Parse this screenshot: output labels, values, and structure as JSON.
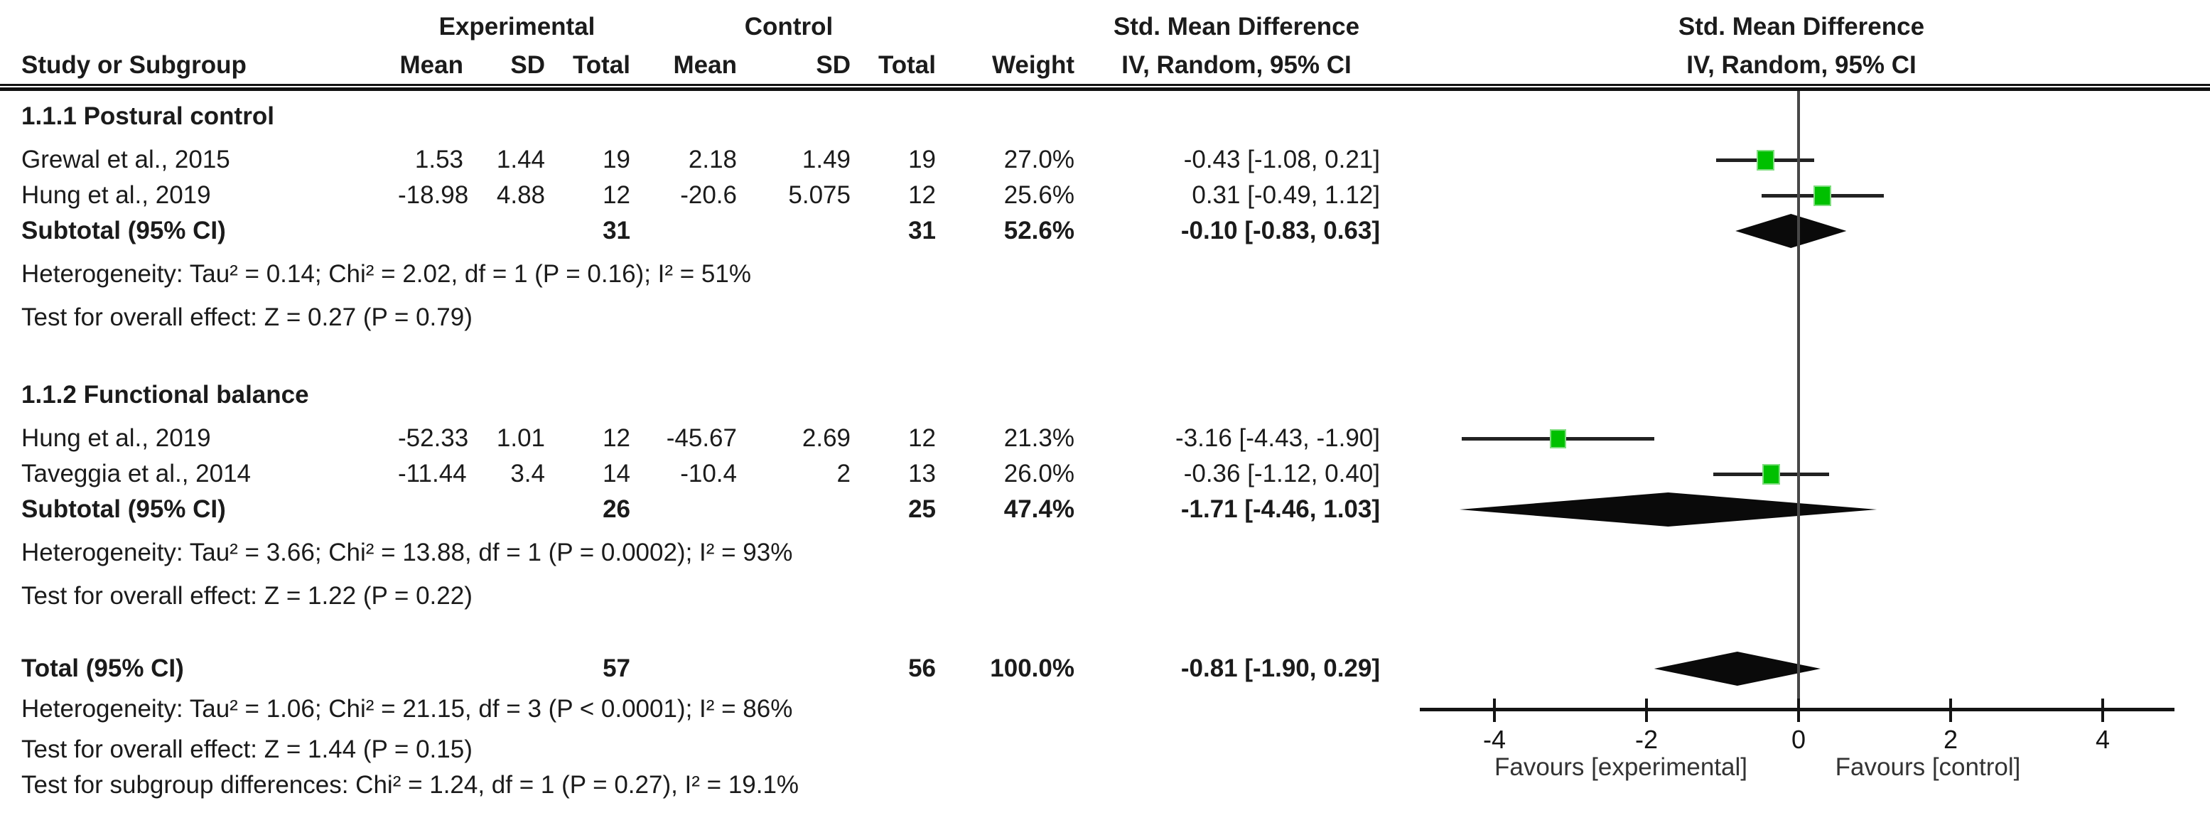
{
  "headers": {
    "experimental": "Experimental",
    "control": "Control",
    "smd_line1": "Std. Mean Difference",
    "smd_line2": "IV, Random, 95% CI",
    "study": "Study or Subgroup",
    "mean": "Mean",
    "sd": "SD",
    "total": "Total",
    "weight": "Weight"
  },
  "chart_data": {
    "type": "forest",
    "effect_measure": "Std. Mean Difference",
    "model": "IV, Random, 95% CI",
    "marker_color": "#00c000",
    "diamond_color": "#0a0a0a",
    "x_axis": {
      "ticks": [
        -4,
        -2,
        0,
        2,
        4
      ],
      "min": -5,
      "max": 5,
      "label_left": "Favours [experimental]",
      "label_right": "Favours [control]"
    },
    "sections": [
      {
        "heading": "1.1.1 Postural control",
        "studies": [
          {
            "label": "Grewal et al., 2015",
            "exp": {
              "mean": "1.53",
              "sd": "1.44",
              "total": "19"
            },
            "ctrl": {
              "mean": "2.18",
              "sd": "1.49",
              "total": "19"
            },
            "weight": "27.0%",
            "ci_text": "-0.43 [-1.08, 0.21]",
            "effect": -0.43,
            "lo": -1.08,
            "hi": 0.21
          },
          {
            "label": "Hung et al., 2019",
            "exp": {
              "mean": "-18.98",
              "sd": "4.88",
              "total": "12"
            },
            "ctrl": {
              "mean": "-20.6",
              "sd": "5.075",
              "total": "12"
            },
            "weight": "25.6%",
            "ci_text": "0.31 [-0.49, 1.12]",
            "effect": 0.31,
            "lo": -0.49,
            "hi": 1.12
          }
        ],
        "subtotal": {
          "label": "Subtotal (95% CI)",
          "exp_total": "31",
          "ctrl_total": "31",
          "weight": "52.6%",
          "ci_text": "-0.10 [-0.83, 0.63]",
          "effect": -0.1,
          "lo": -0.83,
          "hi": 0.63
        },
        "heterogeneity": "Heterogeneity: Tau² = 0.14; Chi² = 2.02, df = 1 (P = 0.16); I² = 51%",
        "overall_effect": "Test for overall effect: Z = 0.27 (P = 0.79)"
      },
      {
        "heading": "1.1.2 Functional balance",
        "studies": [
          {
            "label": "Hung et al., 2019",
            "exp": {
              "mean": "-52.33",
              "sd": "1.01",
              "total": "12"
            },
            "ctrl": {
              "mean": "-45.67",
              "sd": "2.69",
              "total": "12"
            },
            "weight": "21.3%",
            "ci_text": "-3.16 [-4.43, -1.90]",
            "effect": -3.16,
            "lo": -4.43,
            "hi": -1.9
          },
          {
            "label": "Taveggia et al., 2014",
            "exp": {
              "mean": "-11.44",
              "sd": "3.4",
              "total": "14"
            },
            "ctrl": {
              "mean": "-10.4",
              "sd": "2",
              "total": "13"
            },
            "weight": "26.0%",
            "ci_text": "-0.36 [-1.12, 0.40]",
            "effect": -0.36,
            "lo": -1.12,
            "hi": 0.4
          }
        ],
        "subtotal": {
          "label": "Subtotal (95% CI)",
          "exp_total": "26",
          "ctrl_total": "25",
          "weight": "47.4%",
          "ci_text": "-1.71 [-4.46, 1.03]",
          "effect": -1.71,
          "lo": -4.46,
          "hi": 1.03
        },
        "heterogeneity": "Heterogeneity: Tau² = 3.66; Chi² = 13.88, df = 1 (P = 0.0002); I² = 93%",
        "overall_effect": "Test for overall effect: Z = 1.22 (P = 0.22)"
      }
    ],
    "total": {
      "label": "Total (95% CI)",
      "exp_total": "57",
      "ctrl_total": "56",
      "weight": "100.0%",
      "ci_text": "-0.81 [-1.90, 0.29]",
      "effect": -0.81,
      "lo": -1.9,
      "hi": 0.29
    },
    "total_heterogeneity": "Heterogeneity: Tau² = 1.06; Chi² = 21.15, df = 3 (P < 0.0001); I² = 86%",
    "total_overall_effect": "Test for overall effect: Z = 1.44 (P = 0.15)",
    "subgroup_differences": "Test for subgroup differences: Chi² = 1.24, df = 1 (P = 0.27), I² = 19.1%"
  }
}
